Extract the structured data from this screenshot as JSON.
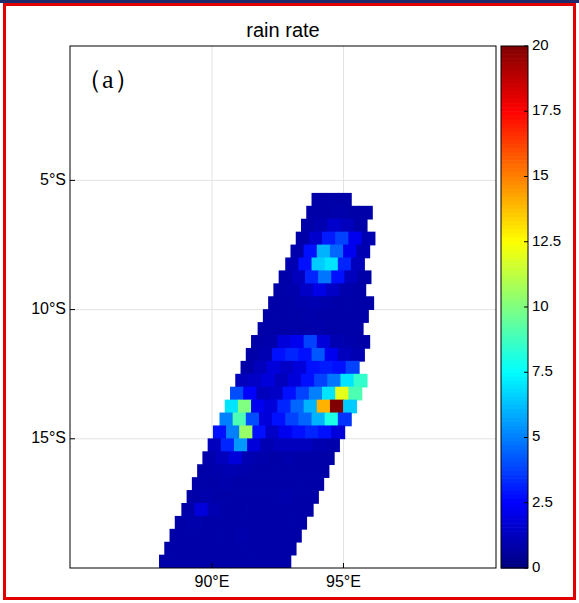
{
  "chart_data": {
    "type": "heatmap",
    "title": "rain rate",
    "annotation": "（a）",
    "xlim": [
      84.6,
      100.8
    ],
    "ylim": [
      -20,
      0.2
    ],
    "xticks": [
      {
        "value": 90,
        "label": "90°E"
      },
      {
        "value": 95,
        "label": "95°E"
      }
    ],
    "yticks": [
      {
        "value": -5,
        "label": "5°S"
      },
      {
        "value": -10,
        "label": "10°S"
      },
      {
        "value": -15,
        "label": "15°S"
      }
    ],
    "grid": true,
    "colorbar_range": [
      0,
      20
    ],
    "colorbar_ticks": [
      0,
      2.5,
      5,
      7.5,
      10,
      12.5,
      15,
      17.5,
      20
    ],
    "cell_size": 0.5,
    "rows": [
      {
        "lat": -5.75,
        "lon_start": 93.8,
        "values": [
          0.8,
          0.8,
          0.8
        ]
      },
      {
        "lat": -6.25,
        "lon_start": 93.6,
        "values": [
          0.8,
          0.8,
          0.9,
          0.8,
          0.8
        ]
      },
      {
        "lat": -6.75,
        "lon_start": 93.4,
        "values": [
          0.8,
          1.0,
          1.5,
          1.2,
          0.8
        ]
      },
      {
        "lat": -7.25,
        "lon_start": 93.2,
        "values": [
          0.8,
          1.5,
          3.0,
          3.8,
          2.2,
          1.0
        ]
      },
      {
        "lat": -7.75,
        "lon_start": 93.0,
        "values": [
          0.9,
          2.8,
          6.0,
          4.5,
          2.2,
          1.0
        ]
      },
      {
        "lat": -8.25,
        "lon_start": 92.8,
        "values": [
          1.0,
          2.8,
          6.5,
          7.0,
          3.2,
          1.2
        ]
      },
      {
        "lat": -8.75,
        "lon_start": 92.55,
        "values": [
          0.8,
          1.2,
          3.2,
          4.8,
          2.8,
          1.2,
          0.8
        ]
      },
      {
        "lat": -9.25,
        "lon_start": 92.35,
        "values": [
          0.8,
          0.9,
          1.4,
          2.0,
          1.4,
          0.9,
          0.8
        ]
      },
      {
        "lat": -9.75,
        "lon_start": 92.15,
        "values": [
          0.8,
          0.8,
          0.9,
          1.0,
          0.9,
          0.8,
          0.8,
          0.8
        ]
      },
      {
        "lat": -10.25,
        "lon_start": 91.95,
        "values": [
          0.8,
          0.8,
          0.8,
          0.9,
          0.8,
          0.8,
          0.8,
          0.8
        ]
      },
      {
        "lat": -10.75,
        "lon_start": 91.75,
        "values": [
          0.8,
          0.8,
          0.8,
          0.8,
          0.9,
          0.8,
          0.8,
          0.8
        ]
      },
      {
        "lat": -11.25,
        "lon_start": 91.5,
        "values": [
          0.8,
          0.9,
          1.8,
          2.2,
          3.8,
          1.8,
          1.0,
          0.9,
          0.8
        ]
      },
      {
        "lat": -11.75,
        "lon_start": 91.3,
        "values": [
          0.8,
          1.0,
          2.8,
          3.2,
          2.8,
          4.2,
          2.2,
          1.2,
          1.0
        ]
      },
      {
        "lat": -12.25,
        "lon_start": 91.1,
        "values": [
          0.8,
          1.2,
          1.8,
          1.4,
          1.8,
          2.8,
          3.0,
          2.8,
          3.8
        ]
      },
      {
        "lat": -12.75,
        "lon_start": 90.9,
        "values": [
          1.2,
          1.4,
          1.8,
          1.2,
          1.8,
          2.8,
          3.8,
          4.8,
          7.0,
          8.5
        ]
      },
      {
        "lat": -13.25,
        "lon_start": 90.7,
        "values": [
          4.0,
          2.5,
          1.2,
          1.4,
          2.8,
          3.8,
          5.0,
          7.0,
          12.0,
          9.0
        ]
      },
      {
        "lat": -13.75,
        "lon_start": 90.5,
        "values": [
          7.0,
          10.0,
          2.2,
          1.8,
          3.2,
          4.5,
          6.0,
          14.0,
          20.0,
          6.5
        ]
      },
      {
        "lat": -14.25,
        "lon_start": 90.3,
        "values": [
          5.0,
          9.0,
          4.0,
          1.8,
          2.8,
          3.8,
          4.5,
          6.0,
          8.0,
          3.5
        ]
      },
      {
        "lat": -14.75,
        "lon_start": 90.05,
        "values": [
          2.8,
          5.0,
          10.5,
          2.8,
          1.4,
          2.2,
          2.8,
          3.2,
          2.8,
          1.8
        ]
      },
      {
        "lat": -15.25,
        "lon_start": 89.85,
        "values": [
          1.2,
          3.2,
          5.5,
          1.8,
          1.0,
          1.2,
          1.2,
          1.2,
          1.0,
          0.9
        ]
      },
      {
        "lat": -15.75,
        "lon_start": 89.65,
        "values": [
          0.9,
          1.2,
          1.8,
          1.0,
          0.9,
          0.8,
          0.9,
          0.8,
          0.8,
          0.8
        ]
      },
      {
        "lat": -16.25,
        "lon_start": 89.45,
        "values": [
          0.8,
          0.9,
          1.0,
          0.9,
          0.8,
          0.8,
          0.8,
          0.8,
          0.8,
          0.8
        ]
      },
      {
        "lat": -16.75,
        "lon_start": 89.25,
        "values": [
          0.8,
          0.8,
          0.9,
          0.8,
          0.8,
          0.8,
          0.8,
          0.8,
          0.8,
          0.8
        ]
      },
      {
        "lat": -17.25,
        "lon_start": 89.05,
        "values": [
          0.8,
          0.9,
          0.8,
          0.8,
          0.8,
          0.8,
          0.8,
          0.9,
          0.8,
          0.8
        ]
      },
      {
        "lat": -17.75,
        "lon_start": 88.85,
        "values": [
          0.8,
          1.8,
          1.0,
          0.8,
          0.8,
          0.8,
          0.8,
          0.8,
          0.8,
          0.8
        ]
      },
      {
        "lat": -18.25,
        "lon_start": 88.6,
        "values": [
          0.8,
          0.9,
          0.8,
          0.8,
          0.8,
          0.8,
          0.8,
          0.8,
          0.8,
          0.8
        ]
      },
      {
        "lat": -18.75,
        "lon_start": 88.4,
        "values": [
          0.8,
          0.8,
          0.8,
          0.8,
          0.8,
          0.9,
          0.8,
          0.8,
          0.8,
          0.8
        ]
      },
      {
        "lat": -19.25,
        "lon_start": 88.2,
        "values": [
          0.8,
          0.8,
          0.8,
          0.8,
          0.8,
          0.8,
          0.8,
          0.8,
          0.8,
          0.8
        ]
      },
      {
        "lat": -19.75,
        "lon_start": 88.0,
        "values": [
          0.8,
          0.8,
          0.8,
          0.8,
          0.8,
          0.8,
          0.8,
          0.8,
          0.8,
          0.8
        ]
      }
    ]
  }
}
